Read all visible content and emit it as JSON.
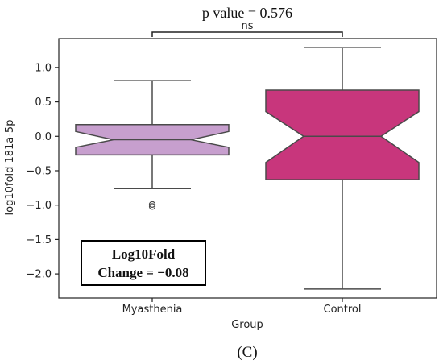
{
  "chart_data": {
    "type": "box",
    "xlabel": "Group",
    "ylabel": "log10fold 181a-5p",
    "categories": [
      "Myasthenia",
      "Control"
    ],
    "ylim": [
      -2.35,
      1.42
    ],
    "yticks": [
      1.0,
      0.5,
      0.0,
      -0.5,
      -1.0,
      -1.5,
      -2.0
    ],
    "ytick_labels": [
      "1.0",
      "0.5",
      "0.0",
      "−0.5",
      "−1.0",
      "−1.5",
      "−2.0"
    ],
    "notched": true,
    "boxes": [
      {
        "category": "Myasthenia",
        "color": "#c79fce",
        "whisker_high": 0.81,
        "q3": 0.17,
        "notch_high": 0.07,
        "median": -0.05,
        "notch_low": -0.16,
        "q1": -0.27,
        "whisker_low": -0.76,
        "outliers": [
          -0.99,
          -1.02
        ]
      },
      {
        "category": "Control",
        "color": "#c8367c",
        "whisker_high": 1.29,
        "q3": 0.67,
        "notch_high": 0.36,
        "median": 0.0,
        "notch_low": -0.38,
        "q1": -0.63,
        "whisker_low": -2.22,
        "outliers": []
      }
    ],
    "annotation": {
      "pvalue_label": "p value = 0.576",
      "significance_label": "ns"
    },
    "textbox": {
      "line1": "Log10Fold",
      "line2": "Change = −0.08"
    },
    "panel_label": "(C)"
  }
}
